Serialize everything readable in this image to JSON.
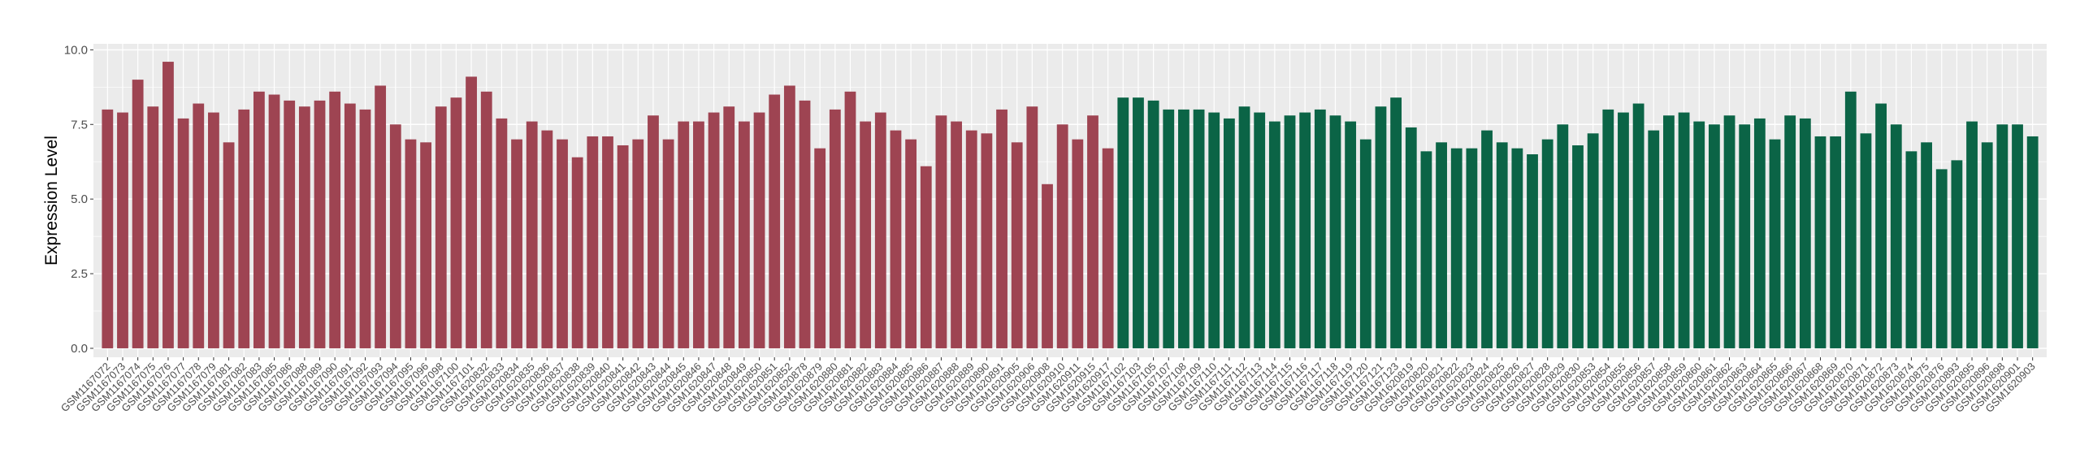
{
  "chart_data": {
    "type": "bar",
    "ylabel": "Expression Level",
    "ylim": [
      -0.3,
      10.2
    ],
    "yticks": [
      {
        "value": 0,
        "label": "0.0"
      },
      {
        "value": 2.5,
        "label": "2.5"
      },
      {
        "value": 5,
        "label": "5.0"
      },
      {
        "value": 7.5,
        "label": "7.5"
      },
      {
        "value": 10,
        "label": "10.0"
      }
    ],
    "grid": true,
    "categories": [
      "GSM1167072",
      "GSM1167073",
      "GSM1167074",
      "GSM1167075",
      "GSM1167076",
      "GSM1167077",
      "GSM1167078",
      "GSM1167079",
      "GSM1167081",
      "GSM1167082",
      "GSM1167083",
      "GSM1167085",
      "GSM1167086",
      "GSM1167088",
      "GSM1167089",
      "GSM1167090",
      "GSM1167091",
      "GSM1167092",
      "GSM1167093",
      "GSM1167094",
      "GSM1167095",
      "GSM1167096",
      "GSM1167098",
      "GSM1167100",
      "GSM1167101",
      "GSM1620832",
      "GSM1620833",
      "GSM1620834",
      "GSM1620835",
      "GSM1620836",
      "GSM1620837",
      "GSM1620838",
      "GSM1620839",
      "GSM1620840",
      "GSM1620841",
      "GSM1620842",
      "GSM1620843",
      "GSM1620844",
      "GSM1620845",
      "GSM1620846",
      "GSM1620847",
      "GSM1620848",
      "GSM1620849",
      "GSM1620850",
      "GSM1620851",
      "GSM1620852",
      "GSM1620878",
      "GSM1620879",
      "GSM1620880",
      "GSM1620881",
      "GSM1620882",
      "GSM1620883",
      "GSM1620884",
      "GSM1620885",
      "GSM1620886",
      "GSM1620887",
      "GSM1620888",
      "GSM1620889",
      "GSM1620890",
      "GSM1620891",
      "GSM1620905",
      "GSM1620906",
      "GSM1620908",
      "GSM1620910",
      "GSM1620911",
      "GSM1620915",
      "GSM1620917",
      "GSM1167102",
      "GSM1167103",
      "GSM1167105",
      "GSM1167107",
      "GSM1167108",
      "GSM1167109",
      "GSM1167110",
      "GSM1167111",
      "GSM1167112",
      "GSM1167113",
      "GSM1167114",
      "GSM1167115",
      "GSM1167116",
      "GSM1167117",
      "GSM1167118",
      "GSM1167119",
      "GSM1167120",
      "GSM1167121",
      "GSM1167123",
      "GSM1620819",
      "GSM1620820",
      "GSM1620821",
      "GSM1620822",
      "GSM1620823",
      "GSM1620824",
      "GSM1620825",
      "GSM1620826",
      "GSM1620827",
      "GSM1620828",
      "GSM1620829",
      "GSM1620830",
      "GSM1620853",
      "GSM1620854",
      "GSM1620855",
      "GSM1620856",
      "GSM1620857",
      "GSM1620858",
      "GSM1620859",
      "GSM1620860",
      "GSM1620861",
      "GSM1620862",
      "GSM1620863",
      "GSM1620864",
      "GSM1620865",
      "GSM1620866",
      "GSM1620867",
      "GSM1620868",
      "GSM1620869",
      "GSM1620870",
      "GSM1620871",
      "GSM1620872",
      "GSM1620873",
      "GSM1620874",
      "GSM1620875",
      "GSM1620876",
      "GSM1620893",
      "GSM1620895",
      "GSM1620896",
      "GSM1620898",
      "GSM1620901",
      "GSM1620903"
    ],
    "values": [
      8.0,
      7.9,
      9.0,
      8.1,
      9.6,
      7.7,
      8.2,
      7.9,
      6.9,
      8.0,
      8.6,
      8.5,
      8.3,
      8.1,
      8.3,
      8.6,
      8.2,
      8.0,
      8.8,
      7.5,
      7.0,
      6.9,
      8.1,
      8.4,
      9.1,
      8.6,
      7.7,
      7.0,
      7.6,
      7.3,
      7.0,
      6.4,
      7.1,
      7.1,
      6.8,
      7.0,
      7.8,
      7.0,
      7.6,
      7.6,
      7.9,
      8.1,
      7.6,
      7.9,
      8.5,
      8.8,
      8.3,
      6.7,
      8.0,
      8.6,
      7.6,
      7.9,
      7.3,
      7.0,
      6.1,
      7.8,
      7.6,
      7.3,
      7.2,
      8.0,
      6.9,
      8.1,
      5.5,
      7.5,
      7.0,
      7.8,
      6.7,
      8.4,
      8.4,
      8.3,
      8.0,
      8.0,
      8.0,
      7.9,
      7.7,
      8.1,
      7.9,
      7.6,
      7.8,
      7.9,
      8.0,
      7.8,
      7.6,
      7.0,
      8.1,
      8.4,
      7.4,
      6.6,
      6.9,
      6.7,
      6.7,
      7.3,
      6.9,
      6.7,
      6.5,
      7.0,
      7.5,
      6.8,
      7.2,
      8.0,
      7.9,
      8.2,
      7.3,
      7.8,
      7.9,
      7.6,
      7.5,
      7.8,
      7.5,
      7.7,
      7.0,
      7.8,
      7.7,
      7.1,
      7.1,
      8.6,
      7.2,
      8.2,
      7.5,
      6.6,
      6.9,
      6.0,
      6.3,
      7.6,
      6.9,
      7.5,
      7.5,
      7.1
    ],
    "colors": [
      "#9e4452",
      "#9e4452",
      "#9e4452",
      "#9e4452",
      "#9e4452",
      "#9e4452",
      "#9e4452",
      "#9e4452",
      "#9e4452",
      "#9e4452",
      "#9e4452",
      "#9e4452",
      "#9e4452",
      "#9e4452",
      "#9e4452",
      "#9e4452",
      "#9e4452",
      "#9e4452",
      "#9e4452",
      "#9e4452",
      "#9e4452",
      "#9e4452",
      "#9e4452",
      "#9e4452",
      "#9e4452",
      "#9e4452",
      "#9e4452",
      "#9e4452",
      "#9e4452",
      "#9e4452",
      "#9e4452",
      "#9e4452",
      "#9e4452",
      "#9e4452",
      "#9e4452",
      "#9e4452",
      "#9e4452",
      "#9e4452",
      "#9e4452",
      "#9e4452",
      "#9e4452",
      "#9e4452",
      "#9e4452",
      "#9e4452",
      "#9e4452",
      "#9e4452",
      "#9e4452",
      "#9e4452",
      "#9e4452",
      "#9e4452",
      "#9e4452",
      "#9e4452",
      "#9e4452",
      "#9e4452",
      "#9e4452",
      "#9e4452",
      "#9e4452",
      "#9e4452",
      "#9e4452",
      "#9e4452",
      "#9e4452",
      "#9e4452",
      "#9e4452",
      "#9e4452",
      "#9e4452",
      "#9e4452",
      "#9e4452",
      "#0b6446",
      "#0b6446",
      "#0b6446",
      "#0b6446",
      "#0b6446",
      "#0b6446",
      "#0b6446",
      "#0b6446",
      "#0b6446",
      "#0b6446",
      "#0b6446",
      "#0b6446",
      "#0b6446",
      "#0b6446",
      "#0b6446",
      "#0b6446",
      "#0b6446",
      "#0b6446",
      "#0b6446",
      "#0b6446",
      "#0b6446",
      "#0b6446",
      "#0b6446",
      "#0b6446",
      "#0b6446",
      "#0b6446",
      "#0b6446",
      "#0b6446",
      "#0b6446",
      "#0b6446",
      "#0b6446",
      "#0b6446",
      "#0b6446",
      "#0b6446",
      "#0b6446",
      "#0b6446",
      "#0b6446",
      "#0b6446",
      "#0b6446",
      "#0b6446",
      "#0b6446",
      "#0b6446",
      "#0b6446",
      "#0b6446",
      "#0b6446",
      "#0b6446",
      "#0b6446",
      "#0b6446",
      "#0b6446",
      "#0b6446",
      "#0b6446",
      "#0b6446",
      "#0b6446",
      "#0b6446",
      "#0b6446",
      "#0b6446",
      "#0b6446",
      "#0b6446",
      "#0b6446",
      "#0b6446",
      "#0b6446"
    ]
  }
}
